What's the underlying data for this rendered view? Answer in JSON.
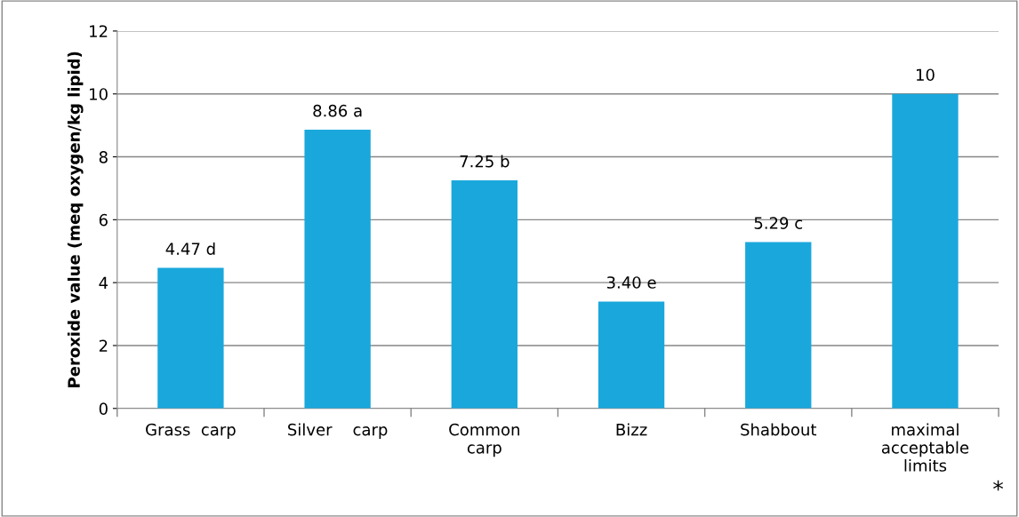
{
  "chart_data": {
    "type": "bar",
    "ylabel": "Peroxide value (meq oxygen/kg lipid)",
    "categories": [
      "Grass  carp",
      "Silver    carp",
      "Common\ncarp",
      "Bizz",
      "Shabbout",
      "maximal\nacceptable\nlimits"
    ],
    "values": [
      4.47,
      8.86,
      7.25,
      3.4,
      5.29,
      10
    ],
    "value_labels": [
      "4.47 d",
      "8.86 a",
      "7.25 b",
      "3.40 e",
      "5.29 c",
      "10"
    ],
    "color": "#1aa8dc",
    "ylim": [
      0,
      12
    ],
    "yticks": [
      0,
      2,
      4,
      6,
      8,
      10,
      12
    ],
    "grid": "y",
    "annotations": [
      "*"
    ]
  }
}
